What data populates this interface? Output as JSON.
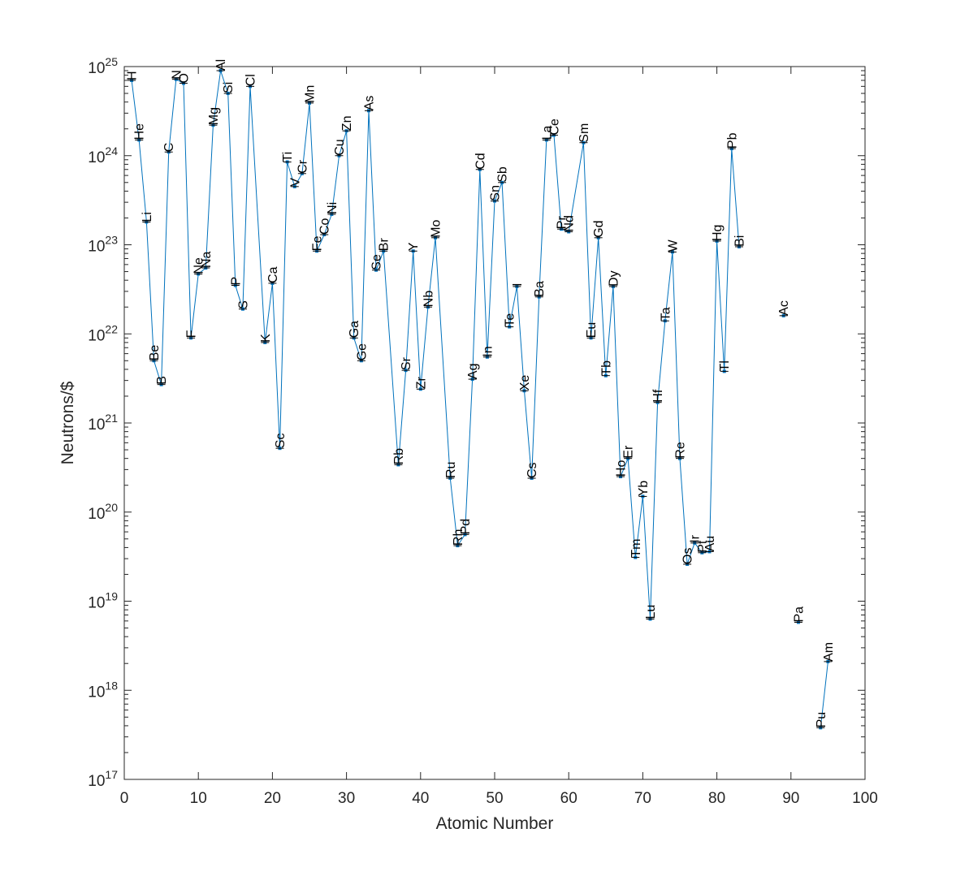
{
  "chart_data": {
    "type": "line",
    "xlabel": "Atomic Number",
    "ylabel": "Neutrons/$",
    "xlim": [
      0,
      100
    ],
    "ylim": [
      1e+17,
      1e+25
    ],
    "yscale": "log",
    "x_ticks": [
      "0",
      "10",
      "20",
      "30",
      "40",
      "50",
      "60",
      "70",
      "80",
      "90",
      "100"
    ],
    "y_ticks": [
      {
        "mantissa": "10",
        "exp": "17"
      },
      {
        "mantissa": "10",
        "exp": "18"
      },
      {
        "mantissa": "10",
        "exp": "19"
      },
      {
        "mantissa": "10",
        "exp": "20"
      },
      {
        "mantissa": "10",
        "exp": "21"
      },
      {
        "mantissa": "10",
        "exp": "22"
      },
      {
        "mantissa": "10",
        "exp": "23"
      },
      {
        "mantissa": "10",
        "exp": "24"
      },
      {
        "mantissa": "10",
        "exp": "25"
      }
    ],
    "grid": false,
    "line_color": "#0072BD",
    "segments": [
      [
        {
          "label": "H",
          "x": 1,
          "y": 7e+24
        },
        {
          "label": "He",
          "x": 2,
          "y": 1.5e+24
        },
        {
          "label": "Li",
          "x": 3,
          "y": 1.8e+23
        },
        {
          "label": "Be",
          "x": 4,
          "y": 5e+21
        },
        {
          "label": "B",
          "x": 5,
          "y": 2.7e+21
        },
        {
          "label": "C",
          "x": 6,
          "y": 1.1e+24
        },
        {
          "label": "N",
          "x": 7,
          "y": 7.2e+24
        },
        {
          "label": "O",
          "x": 8,
          "y": 6.5e+24
        },
        {
          "label": "F",
          "x": 9,
          "y": 9e+21
        },
        {
          "label": "Ne",
          "x": 10,
          "y": 4.7e+22
        },
        {
          "label": "Na",
          "x": 11,
          "y": 5.5e+22
        },
        {
          "label": "Mg",
          "x": 12,
          "y": 2.2e+24
        },
        {
          "label": "Al",
          "x": 13,
          "y": 9e+24
        },
        {
          "label": "Si",
          "x": 14,
          "y": 5e+24
        },
        {
          "label": "P",
          "x": 15,
          "y": 3.5e+22
        },
        {
          "label": "S",
          "x": 16,
          "y": 1.9e+22
        },
        {
          "label": "Cl",
          "x": 17,
          "y": 6e+24
        },
        {
          "label": "K",
          "x": 19,
          "y": 8e+21
        },
        {
          "label": "Ca",
          "x": 20,
          "y": 3.7e+22
        },
        {
          "label": "Sc",
          "x": 21,
          "y": 5.2e+20
        },
        {
          "label": "Ti",
          "x": 22,
          "y": 8.5e+23
        },
        {
          "label": "V",
          "x": 23,
          "y": 4.5e+23
        },
        {
          "label": "Cr",
          "x": 24,
          "y": 6.3e+23
        },
        {
          "label": "Mn",
          "x": 25,
          "y": 3.9e+24
        },
        {
          "label": "Fe",
          "x": 26,
          "y": 8.5e+22
        },
        {
          "label": "Co",
          "x": 27,
          "y": 1.3e+23
        },
        {
          "label": "Ni",
          "x": 28,
          "y": 2.2e+23
        },
        {
          "label": "Cu",
          "x": 29,
          "y": 1e+24
        },
        {
          "label": "Zn",
          "x": 30,
          "y": 1.9e+24
        },
        {
          "label": "Ga",
          "x": 31,
          "y": 9e+21
        },
        {
          "label": "Ge",
          "x": 32,
          "y": 5e+21
        },
        {
          "label": "As",
          "x": 33,
          "y": 3.2e+24
        },
        {
          "label": "Se",
          "x": 34,
          "y": 5.2e+22
        },
        {
          "label": "Br",
          "x": 35,
          "y": 8.5e+22
        },
        {
          "label": "Rb",
          "x": 37,
          "y": 3.4e+20
        },
        {
          "label": "Sr",
          "x": 38,
          "y": 3.9e+21
        },
        {
          "label": "Y",
          "x": 39,
          "y": 8.5e+22
        },
        {
          "label": "Zr",
          "x": 40,
          "y": 2.4e+21
        },
        {
          "label": "Nb",
          "x": 41,
          "y": 2e+22
        },
        {
          "label": "Mo",
          "x": 42,
          "y": 1.2e+23
        },
        {
          "label": "Ru",
          "x": 44,
          "y": 2.4e+20
        },
        {
          "label": "Rh",
          "x": 45,
          "y": 4.2e+19
        },
        {
          "label": "Pd",
          "x": 46,
          "y": 5.6e+19
        },
        {
          "label": "Ag",
          "x": 47,
          "y": 3.1e+21
        },
        {
          "label": "Cd",
          "x": 48,
          "y": 7e+23
        },
        {
          "label": "In",
          "x": 49,
          "y": 5.5e+21
        },
        {
          "label": "Sn",
          "x": 50,
          "y": 3.1e+23
        },
        {
          "label": "Sb",
          "x": 51,
          "y": 5e+23
        },
        {
          "label": "Te",
          "x": 52,
          "y": 1.2e+22
        },
        {
          "label": "I",
          "x": 53,
          "y": 3.4e+22
        },
        {
          "label": "Xe",
          "x": 54,
          "y": 2.3e+21
        },
        {
          "label": "Cs",
          "x": 55,
          "y": 2.4e+20
        },
        {
          "label": "Ba",
          "x": 56,
          "y": 2.6e+22
        },
        {
          "label": "La",
          "x": 57,
          "y": 1.5e+24
        },
        {
          "label": "Ce",
          "x": 58,
          "y": 1.7e+24
        },
        {
          "label": "Pr",
          "x": 59,
          "y": 1.5e+23
        },
        {
          "label": "Nd",
          "x": 60,
          "y": 1.4e+23
        },
        {
          "label": "Sm",
          "x": 62,
          "y": 1.4e+24
        },
        {
          "label": "Eu",
          "x": 63,
          "y": 9e+21
        },
        {
          "label": "Gd",
          "x": 64,
          "y": 1.2e+23
        },
        {
          "label": "Tb",
          "x": 65,
          "y": 3.4e+21
        },
        {
          "label": "Dy",
          "x": 66,
          "y": 3.4e+22
        },
        {
          "label": "Ho",
          "x": 67,
          "y": 2.5e+20
        },
        {
          "label": "Er",
          "x": 68,
          "y": 4e+20
        },
        {
          "label": "Tm",
          "x": 69,
          "y": 3.1e+19
        },
        {
          "label": "Yb",
          "x": 70,
          "y": 1.5e+20
        },
        {
          "label": "Lu",
          "x": 71,
          "y": 6.3e+18
        },
        {
          "label": "Hf",
          "x": 72,
          "y": 1.7e+21
        },
        {
          "label": "Ta",
          "x": 73,
          "y": 1.4e+22
        },
        {
          "label": "W",
          "x": 74,
          "y": 8.3e+22
        },
        {
          "label": "Re",
          "x": 75,
          "y": 4e+20
        },
        {
          "label": "Os",
          "x": 76,
          "y": 2.6e+19
        },
        {
          "label": "Ir",
          "x": 77,
          "y": 4.5e+19
        },
        {
          "label": "Pt",
          "x": 78,
          "y": 3.5e+19
        },
        {
          "label": "Au",
          "x": 79,
          "y": 3.6e+19
        },
        {
          "label": "Hg",
          "x": 80,
          "y": 1.1e+23
        },
        {
          "label": "Tl",
          "x": 81,
          "y": 3.8e+21
        },
        {
          "label": "Pb",
          "x": 82,
          "y": 1.2e+24
        },
        {
          "label": "Bi",
          "x": 83,
          "y": 9.5e+22
        }
      ],
      [
        {
          "label": "Ac",
          "x": 89,
          "y": 1.6e+22
        }
      ],
      [
        {
          "label": "Pa",
          "x": 91,
          "y": 5.8e+18
        }
      ],
      [
        {
          "label": "Pu",
          "x": 94,
          "y": 3.8e+17
        },
        {
          "label": "Am",
          "x": 95,
          "y": 2.1e+18
        }
      ]
    ]
  }
}
